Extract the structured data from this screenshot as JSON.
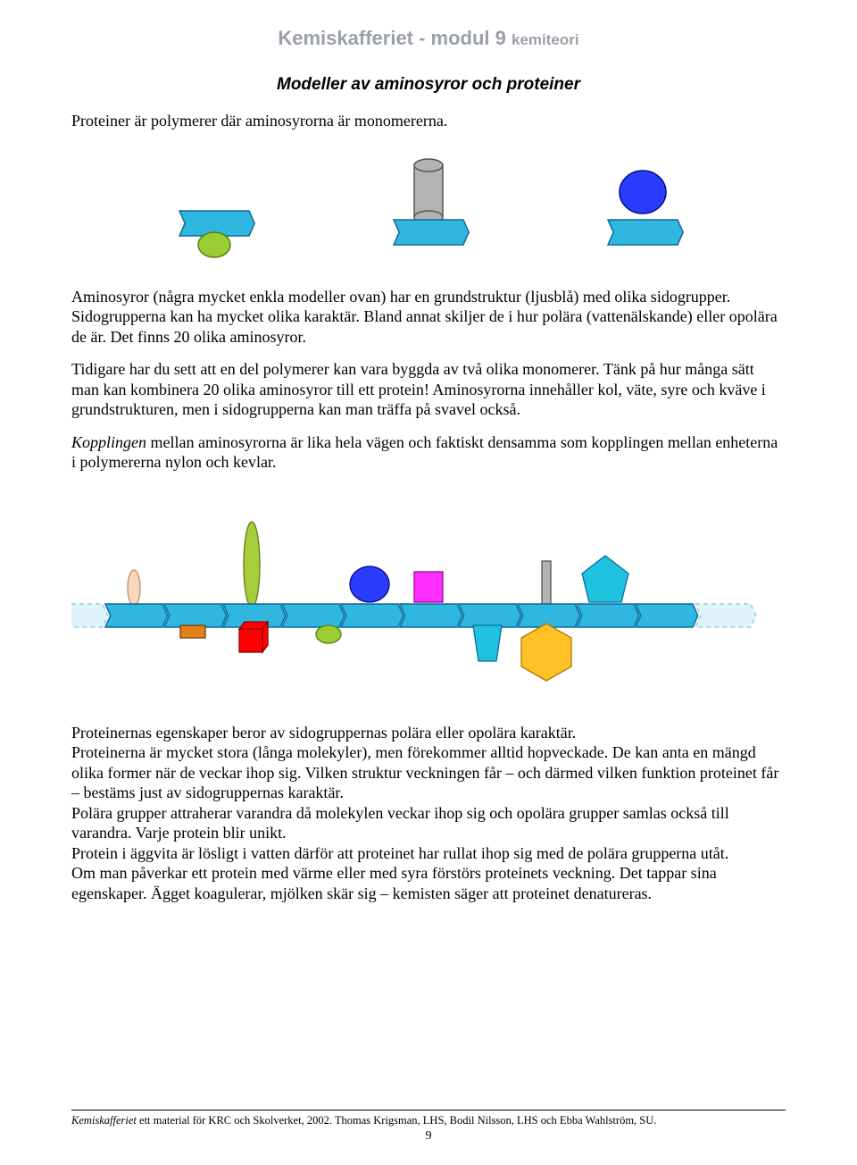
{
  "header": {
    "main": "Kemiskafferiet - modul 9",
    "sub": "kemiteori"
  },
  "title": "Modeller av aminosyror och proteiner",
  "intro": "Proteiner är polymerer där aminosyrorna är monomererna.",
  "p1": "Aminosyror (några mycket enkla modeller ovan) har en grundstruktur (ljusblå) med olika sidogrupper. Sidogrupperna kan ha mycket olika karaktär. Bland annat skiljer de i hur polära (vattenälskande) eller opolära de är. Det finns 20 olika aminosyror.",
  "p2": "Tidigare har du sett att en del polymerer kan vara byggda av två olika monomerer. Tänk på hur många sätt man kan kombinera 20 olika aminosyror till ett protein!",
  "p3": "Aminosyrorna innehåller kol, väte, syre och kväve i grundstrukturen, men i sidogrupperna kan man träffa på svavel också.",
  "p4_label": "Kopplingen",
  "p4_rest": " mellan aminosyrorna är lika hela vägen och faktiskt densamma som kopplingen mellan enheterna i polymererna nylon och kevlar.",
  "p5": "Proteinernas egenskaper beror av sidogruppernas polära eller opolära karaktär.",
  "p6": "Proteinerna är mycket stora (långa molekyler), men förekommer alltid hopveckade. De kan anta en mängd olika former när de veckar ihop sig. Vilken struktur veckningen får – och därmed vilken funktion proteinet får – bestäms just av sidogruppernas karaktär.",
  "p7": "Polära grupper attraherar varandra då molekylen veckar ihop sig och opolära grupper samlas också till varandra. Varje protein blir unikt.",
  "p8": "Protein i äggvita är lösligt i vatten därför att proteinet har rullat ihop sig med de polära grupperna utåt.",
  "p9": "Om man påverkar ett protein med värme eller med syra förstörs proteinets veckning. Det tappar sina egenskaper. Ägget koagulerar, mjölken skär sig – kemisten säger att proteinet denatureras.",
  "footer_ital": "Kemiskafferiet",
  "footer_text": " ett material för KRC och Skolverket, 2002.  Thomas Krigsman, LHS, Bodil Nilsson, LHS och Ebba Wahlström, SU.",
  "page_number": "9",
  "colors": {
    "backbone_fill": "#2fb7e0",
    "backbone_stroke": "#0a6a9c",
    "ghost_fill": "#dff3fc",
    "ghost_stroke": "#9ec7d6",
    "green_fill": "#9acd32",
    "green_stroke": "#5a7d14",
    "gray_fill": "#b3b3b3",
    "gray_stroke": "#555555",
    "blue_fill": "#2a3cff",
    "blue_stroke": "#0a0a8a",
    "peach_fill": "#f7d7c0",
    "peach_stroke": "#c58f6a",
    "orange_fill": "#e2801a",
    "orange_stroke": "#7b4005",
    "red_fill": "#ff0000",
    "red_stroke": "#8b0000",
    "yellowgreen_fill": "#a9cc3b",
    "yellowgreen_stroke": "#5a7d14",
    "magenta_fill": "#ff2eff",
    "magenta_stroke": "#a000a0",
    "gold_fill": "#ffc125",
    "gold_stroke": "#b07800",
    "cyan_fill": "#1fc3e0",
    "cyan_stroke": "#0a6a9c"
  },
  "top_monomers": [
    {
      "side_type": "ellipse_below",
      "side_color": "green"
    },
    {
      "side_type": "cylinder_above",
      "side_color": "gray"
    },
    {
      "side_type": "sphere_above",
      "side_color": "blue"
    }
  ],
  "chain": {
    "units": 10,
    "ghost_ends": true,
    "sidegroups": [
      {
        "at": 0,
        "pos": "top",
        "shape": "tall_ellipse",
        "color": "peach"
      },
      {
        "at": 1,
        "pos": "bottom",
        "shape": "small_rect",
        "color": "orange"
      },
      {
        "at": 2,
        "pos": "top",
        "shape": "very_tall_ellipse",
        "color": "yellowgreen"
      },
      {
        "at": 2,
        "pos": "bottom",
        "shape": "cube",
        "color": "red"
      },
      {
        "at": 3,
        "pos": "bottom_off",
        "shape": "small_ellipse",
        "color": "green"
      },
      {
        "at": 4,
        "pos": "top",
        "shape": "sphere",
        "color": "blue"
      },
      {
        "at": 5,
        "pos": "top",
        "shape": "square",
        "color": "magenta"
      },
      {
        "at": 6,
        "pos": "bottom",
        "shape": "down_trapezoid",
        "color": "cyan"
      },
      {
        "at": 7,
        "pos": "top",
        "shape": "thin_rect",
        "color": "gray"
      },
      {
        "at": 7,
        "pos": "bottom",
        "shape": "hexagon",
        "color": "gold"
      },
      {
        "at": 8,
        "pos": "top",
        "shape": "pentagon",
        "color": "cyan"
      }
    ]
  }
}
